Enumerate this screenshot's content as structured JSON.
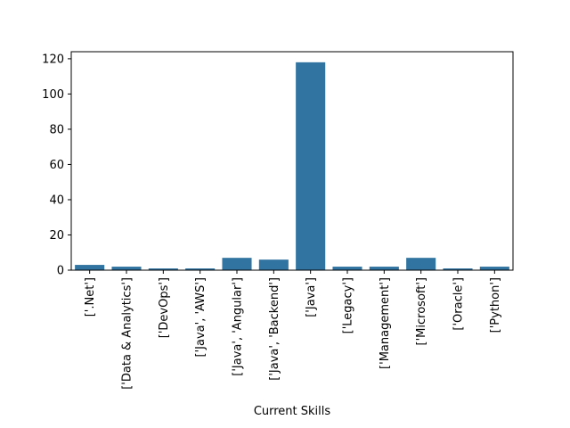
{
  "chart_data": {
    "type": "bar",
    "xlabel": "Current Skills",
    "ylabel": "",
    "categories": [
      "['.Net']",
      "['Data & Analytics']",
      "['DevOps']",
      "['Java', 'AWS']",
      "['Java', 'Angular']",
      "['Java', 'Backend']",
      "['Java']",
      "['Legacy']",
      "['Management']",
      "['Microsoft']",
      "['Oracle']",
      "['Python']"
    ],
    "values": [
      3,
      2,
      1,
      1,
      7,
      6,
      118,
      2,
      2,
      7,
      1,
      2
    ],
    "ylim": [
      0,
      124
    ],
    "yticks": [
      0,
      20,
      40,
      60,
      80,
      100,
      120
    ],
    "grid": false,
    "legend": "none",
    "colors": {
      "bar": "#3274a1",
      "axis": "#000000",
      "background": "#ffffff"
    }
  }
}
